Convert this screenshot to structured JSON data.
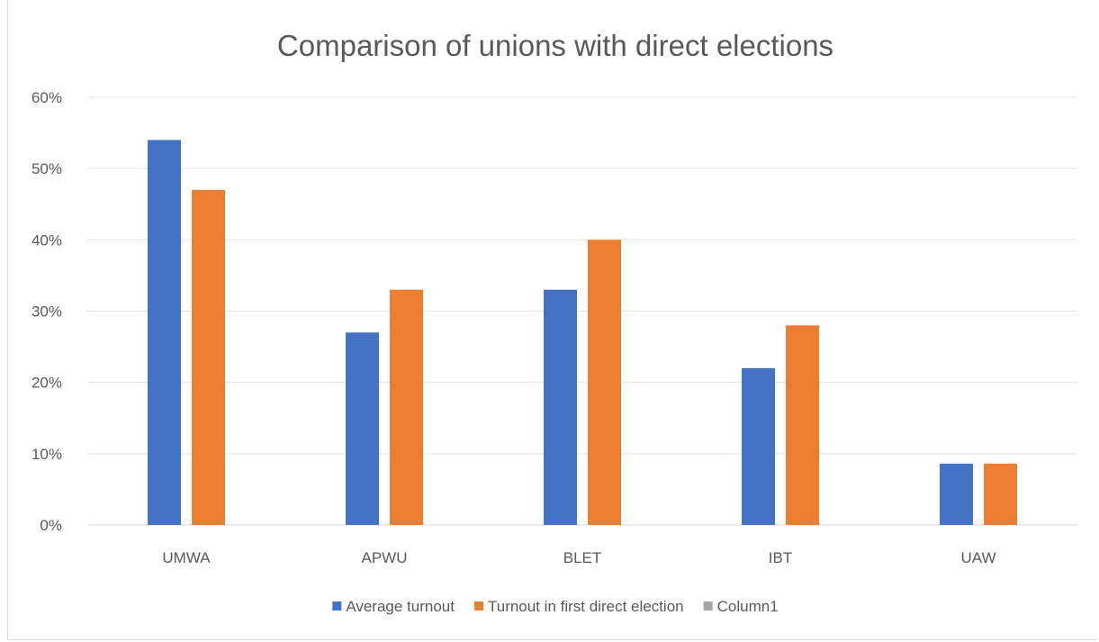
{
  "chart_data": {
    "type": "bar",
    "title": "Comparison of unions with direct elections",
    "xlabel": "",
    "ylabel": "",
    "categories": [
      "UMWA",
      "APWU",
      "BLET",
      "IBT",
      "UAW"
    ],
    "series": [
      {
        "name": "Average turnout",
        "color": "#4472c4",
        "values": [
          54,
          27,
          33,
          22,
          8.6
        ]
      },
      {
        "name": "Turnout  in first direct election",
        "color": "#ed7d31",
        "values": [
          47,
          33,
          40,
          28,
          8.6
        ]
      },
      {
        "name": "Column1",
        "color": "#a5a5a5",
        "values": [
          null,
          null,
          null,
          null,
          null
        ]
      }
    ],
    "ylim": [
      0,
      60
    ],
    "yticks": [
      "0%",
      "10%",
      "20%",
      "30%",
      "40%",
      "50%",
      "60%"
    ],
    "ytick_values": [
      0,
      10,
      20,
      30,
      40,
      50,
      60
    ],
    "grid": true,
    "legend_position": "bottom"
  }
}
